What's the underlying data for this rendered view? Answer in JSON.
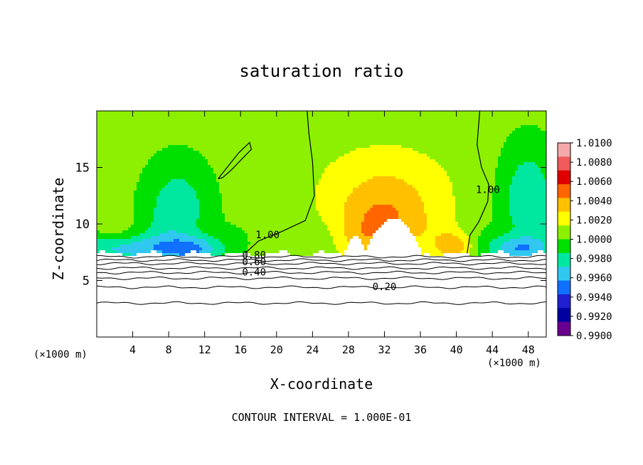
{
  "chart_data": {
    "type": "heatmap",
    "title": "saturation ratio",
    "xlabel": "X-coordinate",
    "ylabel": "Z-coordinate",
    "x_unit_left": "(×1000 m)",
    "x_unit_right": "(×1000 m)",
    "footer": "CONTOUR INTERVAL = 1.000E-01",
    "xlim": [
      0,
      50
    ],
    "ylim": [
      0,
      20
    ],
    "xticks": [
      "4",
      "8",
      "12",
      "16",
      "20",
      "24",
      "28",
      "32",
      "36",
      "40",
      "44",
      "48"
    ],
    "yticks": [
      "5",
      "10",
      "15"
    ],
    "colorbar": {
      "labels": [
        "1.0100",
        "1.0080",
        "1.0060",
        "1.0040",
        "1.0020",
        "1.0000",
        "0.9980",
        "0.9960",
        "0.9940",
        "0.9920",
        "0.9900"
      ],
      "colors": [
        "#f4a8a8",
        "#f05a5a",
        "#e00000",
        "#ff6600",
        "#ffc000",
        "#ffff00",
        "#8cf000",
        "#00e000",
        "#00e8a0",
        "#30c8f0",
        "#1070ff",
        "#2020d0",
        "#0000a0",
        "#6a0090"
      ]
    },
    "contour_labels": [
      {
        "text": "1.00",
        "x": 19.0,
        "y": 9.0
      },
      {
        "text": "1.00",
        "x": 43.5,
        "y": 13.0
      },
      {
        "text": "0.80",
        "x": 17.5,
        "y": 7.2
      },
      {
        "text": "0.60",
        "x": 17.5,
        "y": 6.6
      },
      {
        "text": "0.40",
        "x": 17.5,
        "y": 5.7
      },
      {
        "text": "0.20",
        "x": 32.0,
        "y": 4.4
      }
    ],
    "field_levels": [
      0.99,
      0.992,
      0.994,
      0.996,
      0.998,
      1.0,
      1.002,
      1.004,
      1.006,
      1.008,
      1.01
    ]
  }
}
